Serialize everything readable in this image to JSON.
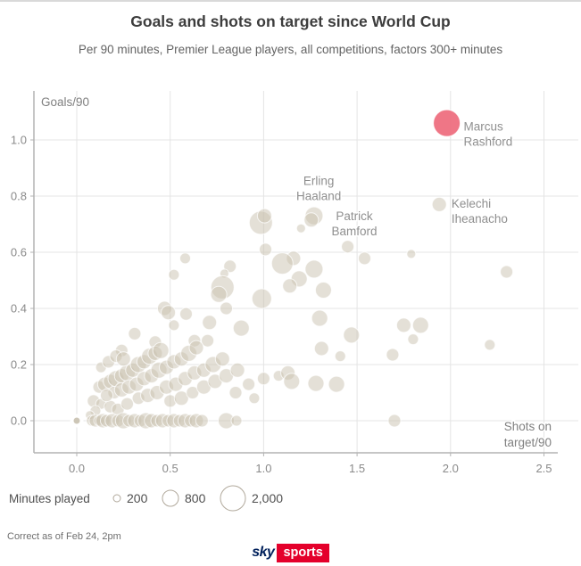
{
  "header": {
    "title": "Goals and shots on target since World Cup",
    "subtitle": "Per 90 minutes, Premier League players, all competitions, factors 300+ minutes"
  },
  "footer": {
    "note": "Correct as of Feb 24, 2pm",
    "logo_sky": "sky",
    "logo_sports": "sports"
  },
  "colors": {
    "bubble": "#c9c1b0",
    "bubble_stroke": "#ffffff",
    "highlight": "#ee6a7c",
    "grid": "#e4e4e4",
    "spine": "#b3b3b3",
    "tick_text": "#8a8a8a",
    "annotation_text": "#8f8f8f",
    "legend_stroke": "#b1a99c",
    "legend_text": "#4f4f4f"
  },
  "chart_data": {
    "type": "scatter",
    "title": "Goals and shots on target since World Cup",
    "x_axis": {
      "title_lines": [
        "Shots on",
        "target/90"
      ],
      "ticks": [
        0.0,
        0.5,
        1.0,
        1.5,
        2.0,
        2.5
      ],
      "range": [
        -0.23,
        2.7
      ]
    },
    "y_axis": {
      "title": "Goals/90",
      "ticks": [
        0.0,
        0.2,
        0.4,
        0.6,
        0.8,
        1.0
      ],
      "range": [
        -0.11,
        1.17
      ]
    },
    "size_legend": {
      "title": "Minutes played",
      "items": [
        {
          "label": "200",
          "r": 4
        },
        {
          "label": "800",
          "r": 9
        },
        {
          "label": "2,000",
          "r": 14
        }
      ]
    },
    "annotations": [
      {
        "name": "Marcus Rashford",
        "lines": [
          "Marcus",
          "Rashford"
        ],
        "x": 2.07,
        "y": 1.05,
        "anchor": "start"
      },
      {
        "name": "Kelechi Iheanacho",
        "lines": [
          "Kelechi",
          "Iheanacho"
        ],
        "x": 2.005,
        "y": 0.775,
        "anchor": "start"
      },
      {
        "name": "Erling Haaland",
        "lines": [
          "Erling",
          "Haaland"
        ],
        "x": 1.295,
        "y": 0.855,
        "anchor": "middle"
      },
      {
        "name": "Patrick Bamford",
        "lines": [
          "Patrick",
          "Bamford"
        ],
        "x": 1.485,
        "y": 0.73,
        "anchor": "middle"
      }
    ],
    "points": [
      [
        1.98,
        1.06,
        15,
        "pink"
      ],
      [
        1.94,
        0.77,
        8
      ],
      [
        1.27,
        0.73,
        10
      ],
      [
        1.255,
        0.715,
        8
      ],
      [
        0.985,
        0.705,
        13
      ],
      [
        1.005,
        0.73,
        8
      ],
      [
        1.2,
        0.685,
        5
      ],
      [
        1.45,
        0.62,
        7
      ],
      [
        1.01,
        0.61,
        7
      ],
      [
        1.79,
        0.594,
        5
      ],
      [
        1.54,
        0.578,
        7
      ],
      [
        0.58,
        0.578,
        6
      ],
      [
        1.16,
        0.578,
        8
      ],
      [
        1.1,
        0.56,
        12
      ],
      [
        0.82,
        0.55,
        7
      ],
      [
        1.27,
        0.54,
        10
      ],
      [
        2.3,
        0.53,
        7
      ],
      [
        0.79,
        0.524,
        5
      ],
      [
        0.52,
        0.52,
        6
      ],
      [
        1.19,
        0.505,
        9
      ],
      [
        1.14,
        0.48,
        8
      ],
      [
        0.78,
        0.475,
        13
      ],
      [
        1.32,
        0.465,
        9
      ],
      [
        0.76,
        0.45,
        9
      ],
      [
        0.99,
        0.435,
        11
      ],
      [
        0.47,
        0.4,
        8
      ],
      [
        0.8,
        0.4,
        7
      ],
      [
        0.49,
        0.385,
        8
      ],
      [
        0.585,
        0.38,
        7
      ],
      [
        1.3,
        0.365,
        9
      ],
      [
        0.71,
        0.35,
        8
      ],
      [
        0.52,
        0.34,
        6
      ],
      [
        1.75,
        0.34,
        8
      ],
      [
        1.84,
        0.34,
        9
      ],
      [
        0.88,
        0.33,
        9
      ],
      [
        0.31,
        0.31,
        7
      ],
      [
        1.47,
        0.305,
        9
      ],
      [
        1.8,
        0.29,
        6
      ],
      [
        0.63,
        0.285,
        7
      ],
      [
        0.7,
        0.285,
        7
      ],
      [
        0.42,
        0.28,
        7
      ],
      [
        2.21,
        0.27,
        6
      ],
      [
        1.31,
        0.257,
        8
      ],
      [
        0.24,
        0.25,
        7
      ],
      [
        1.41,
        0.23,
        6
      ],
      [
        1.69,
        0.235,
        7
      ],
      [
        0.12,
        0.12,
        7
      ],
      [
        0.15,
        0.13,
        8
      ],
      [
        0.18,
        0.14,
        8
      ],
      [
        0.21,
        0.15,
        9
      ],
      [
        0.24,
        0.16,
        8
      ],
      [
        0.27,
        0.17,
        9
      ],
      [
        0.3,
        0.18,
        8
      ],
      [
        0.33,
        0.2,
        9
      ],
      [
        0.36,
        0.21,
        8
      ],
      [
        0.39,
        0.23,
        9
      ],
      [
        0.42,
        0.24,
        8
      ],
      [
        0.45,
        0.25,
        9
      ],
      [
        0.2,
        0.1,
        7
      ],
      [
        0.24,
        0.11,
        8
      ],
      [
        0.28,
        0.12,
        8
      ],
      [
        0.32,
        0.13,
        8
      ],
      [
        0.36,
        0.15,
        8
      ],
      [
        0.4,
        0.16,
        8
      ],
      [
        0.44,
        0.18,
        9
      ],
      [
        0.48,
        0.19,
        8
      ],
      [
        0.52,
        0.21,
        8
      ],
      [
        0.56,
        0.22,
        8
      ],
      [
        0.6,
        0.24,
        9
      ],
      [
        0.64,
        0.26,
        8
      ],
      [
        0.33,
        0.08,
        7
      ],
      [
        0.38,
        0.09,
        8
      ],
      [
        0.43,
        0.1,
        8
      ],
      [
        0.48,
        0.12,
        8
      ],
      [
        0.53,
        0.13,
        8
      ],
      [
        0.58,
        0.15,
        8
      ],
      [
        0.63,
        0.17,
        8
      ],
      [
        0.68,
        0.18,
        8
      ],
      [
        0.73,
        0.2,
        9
      ],
      [
        0.78,
        0.22,
        8
      ],
      [
        0.5,
        0.07,
        7
      ],
      [
        0.56,
        0.08,
        8
      ],
      [
        0.62,
        0.1,
        7
      ],
      [
        0.68,
        0.12,
        8
      ],
      [
        0.74,
        0.14,
        8
      ],
      [
        0.8,
        0.16,
        8
      ],
      [
        0.86,
        0.18,
        8
      ],
      [
        0.13,
        0.19,
        6
      ],
      [
        0.17,
        0.21,
        7
      ],
      [
        0.21,
        0.23,
        7
      ],
      [
        0.25,
        0.22,
        8
      ],
      [
        0.85,
        0.1,
        7
      ],
      [
        0.92,
        0.13,
        7
      ],
      [
        1.0,
        0.15,
        7
      ],
      [
        1.08,
        0.16,
        6
      ],
      [
        1.13,
        0.17,
        8
      ],
      [
        1.15,
        0.14,
        9
      ],
      [
        0.95,
        0.08,
        6
      ],
      [
        1.28,
        0.133,
        9
      ],
      [
        1.39,
        0.13,
        9
      ],
      [
        0.09,
        0.07,
        7
      ],
      [
        0.13,
        0.06,
        6
      ],
      [
        0.18,
        0.05,
        7
      ],
      [
        0.1,
        0.035,
        6
      ],
      [
        0.22,
        0.04,
        7
      ],
      [
        0.07,
        0.02,
        5
      ],
      [
        0.27,
        0.06,
        7
      ],
      [
        0.16,
        0.09,
        7
      ],
      [
        0.08,
        0,
        6
      ],
      [
        0.1,
        0,
        7
      ],
      [
        0.12,
        0,
        6
      ],
      [
        0.14,
        0,
        8
      ],
      [
        0.16,
        0,
        7
      ],
      [
        0.19,
        0,
        8
      ],
      [
        0.22,
        0,
        7
      ],
      [
        0.25,
        0,
        9
      ],
      [
        0.28,
        0,
        7
      ],
      [
        0.31,
        0,
        8
      ],
      [
        0.34,
        0,
        7
      ],
      [
        0.37,
        0,
        9
      ],
      [
        0.4,
        0,
        8
      ],
      [
        0.43,
        0,
        7
      ],
      [
        0.46,
        0,
        8
      ],
      [
        0.49,
        0,
        7
      ],
      [
        0.52,
        0,
        8
      ],
      [
        0.55,
        0,
        7
      ],
      [
        0.58,
        0,
        8
      ],
      [
        0.61,
        0,
        7
      ],
      [
        0.64,
        0,
        8
      ],
      [
        0.67,
        0,
        7
      ],
      [
        0.8,
        0,
        9
      ],
      [
        0.855,
        0,
        6
      ],
      [
        1.7,
        0,
        7
      ],
      [
        0.0,
        0,
        5.5,
        "ring"
      ]
    ]
  }
}
